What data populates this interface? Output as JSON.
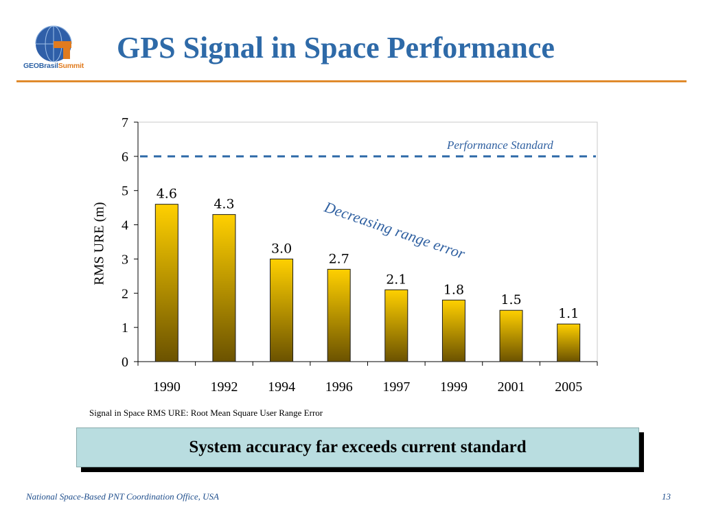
{
  "header": {
    "title": "GPS Signal in Space Performance",
    "logo_text_part1": "GEOBrasil",
    "logo_text_part2": "Summit"
  },
  "colors": {
    "title": "#2e6aa8",
    "rule": "#e08a2c",
    "bar_top": "#ffd000",
    "bar_bottom": "#6b5200",
    "standard_line": "#2e6aa8",
    "callout_bg": "#b9dde0"
  },
  "chart_data": {
    "type": "bar",
    "categories": [
      "1990",
      "1992",
      "1994",
      "1996",
      "1997",
      "1999",
      "2001",
      "2005"
    ],
    "values": [
      4.6,
      4.3,
      3.0,
      2.7,
      2.1,
      1.8,
      1.5,
      1.1
    ],
    "value_labels": [
      "4.6",
      "4.3",
      "3.0",
      "2.7",
      "2.1",
      "1.8",
      "1.5",
      "1.1"
    ],
    "ylabel": "RMS URE (m)",
    "ylim": [
      0,
      7
    ],
    "yticks": [
      "0",
      "1",
      "2",
      "3",
      "4",
      "5",
      "6",
      "7"
    ],
    "reference_line": {
      "value": 6,
      "label": "Performance Standard",
      "style": "dashed"
    },
    "annotation": "Decreasing range error",
    "grid": false
  },
  "footnote": "Signal in Space RMS URE: Root Mean Square User Range Error",
  "callout": "System accuracy far exceeds current standard",
  "footer": {
    "left": "National Space-Based PNT Coordination Office, USA",
    "page": "13"
  }
}
